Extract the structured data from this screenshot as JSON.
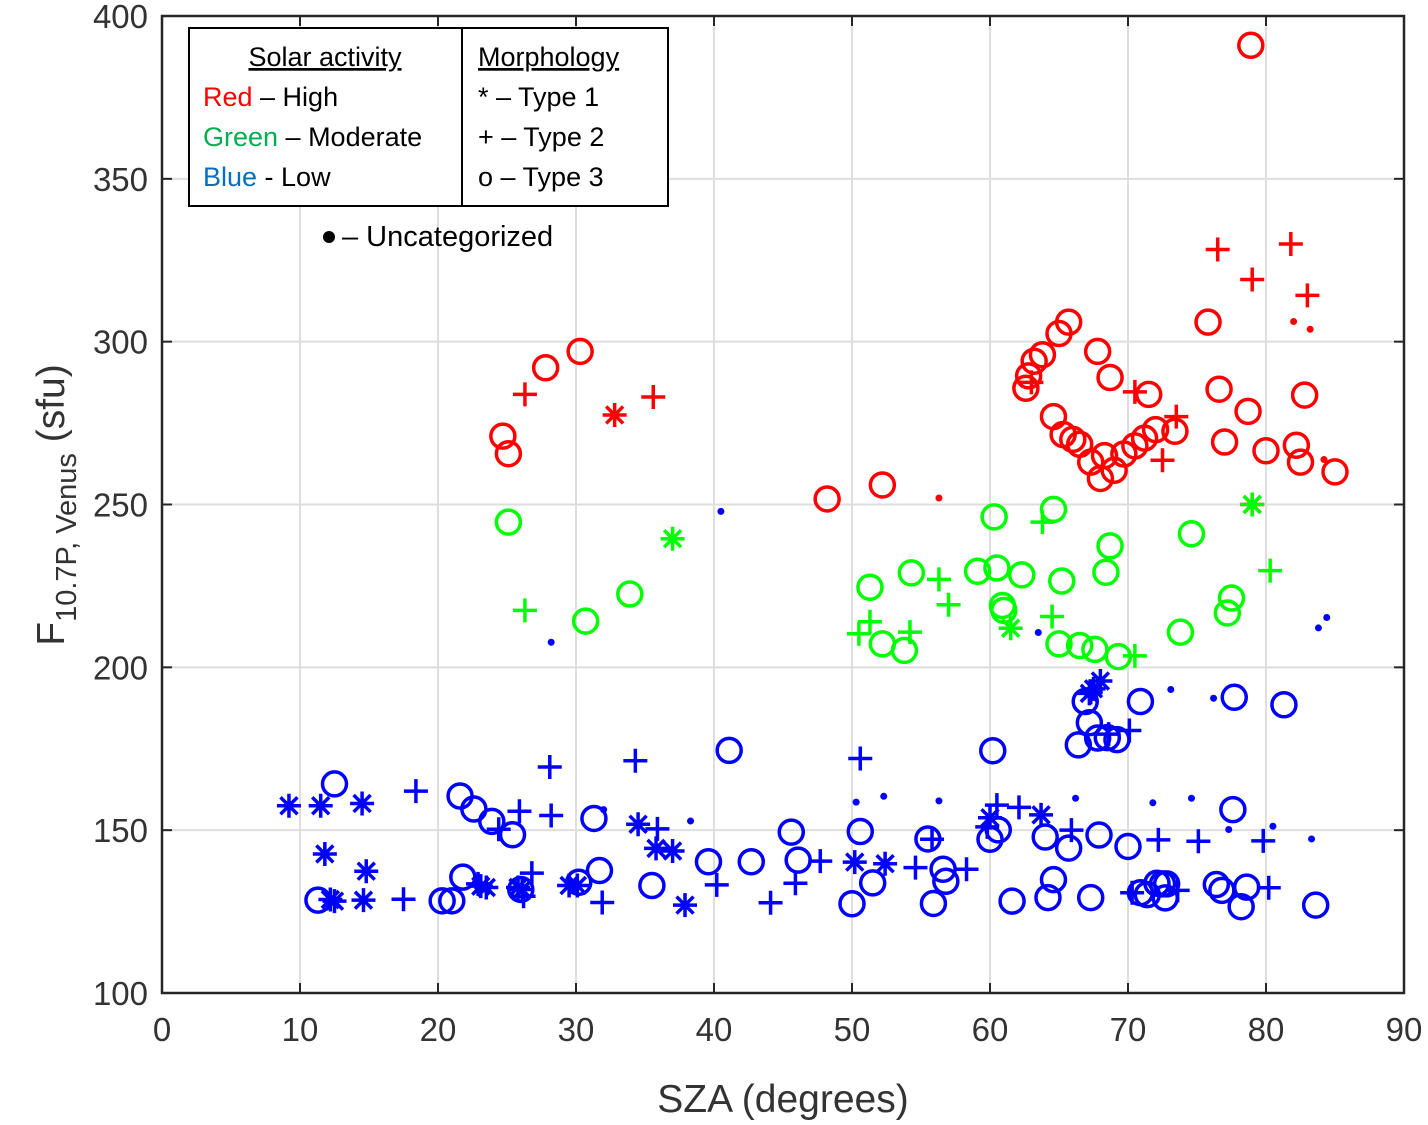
{
  "chart_data": {
    "type": "scatter",
    "x_label": "SZA (degrees)",
    "y_label": {
      "main": "F",
      "sub": "10.7P, Venus",
      "unit": "(sfu)"
    },
    "xlim": [
      0,
      90
    ],
    "ylim": [
      100,
      400
    ],
    "x_ticks": [
      0,
      10,
      20,
      30,
      40,
      50,
      60,
      70,
      80,
      90
    ],
    "y_ticks": [
      100,
      150,
      200,
      250,
      300,
      350,
      400
    ],
    "grid": true,
    "legend": {
      "position": "top-left",
      "col1_title": "Solar activity",
      "col1_rows": [
        {
          "color_word": "Red",
          "suffix": " – High",
          "color": "#ff0000"
        },
        {
          "color_word": "Green",
          "suffix": " – Moderate",
          "color": "#00b050"
        },
        {
          "color_word": "Blue",
          "suffix": " - Low",
          "color": "#0070c0"
        }
      ],
      "col2_title": "Morphology",
      "col2_rows": [
        "* – Type 1",
        "+ – Type 2",
        "o – Type 3"
      ],
      "uncategorized": "– Uncategorized"
    },
    "colors": {
      "High": "#ff0000",
      "Moderate": "#00ff00",
      "Low": "#0000ff"
    },
    "series": [
      {
        "name": "High",
        "color": "#ff0000",
        "type1": [
          [
            32.8,
            277.5
          ],
          [
            79,
            250
          ]
        ],
        "type2": [
          [
            26.3,
            283.8
          ],
          [
            35.6,
            283
          ],
          [
            63,
            287.5
          ],
          [
            70.5,
            284.6
          ],
          [
            72.5,
            263.6
          ],
          [
            73.5,
            277
          ],
          [
            76.5,
            328.3
          ],
          [
            79,
            319.1
          ],
          [
            81.8,
            330
          ],
          [
            83,
            314.2
          ]
        ],
        "type3": [
          [
            24.7,
            271
          ],
          [
            25.1,
            265.6
          ],
          [
            27.8,
            292
          ],
          [
            30.3,
            297
          ],
          [
            48.2,
            251.7
          ],
          [
            52.2,
            256
          ],
          [
            62.6,
            285.7
          ],
          [
            62.8,
            289.5
          ],
          [
            63.2,
            294
          ],
          [
            63.8,
            296
          ],
          [
            64.6,
            277
          ],
          [
            65.0,
            302.5
          ],
          [
            65.7,
            306
          ],
          [
            65.3,
            271.5
          ],
          [
            66,
            270
          ],
          [
            66.5,
            268.5
          ],
          [
            67.3,
            263
          ],
          [
            67.8,
            297
          ],
          [
            68,
            258
          ],
          [
            68.3,
            265
          ],
          [
            68.7,
            289
          ],
          [
            69,
            260.5
          ],
          [
            69.7,
            265.5
          ],
          [
            70.5,
            268
          ],
          [
            71.5,
            283.8
          ],
          [
            71.2,
            270.4
          ],
          [
            72,
            273
          ],
          [
            73.4,
            272.5
          ],
          [
            75.8,
            306
          ],
          [
            76.6,
            285.4
          ],
          [
            77,
            269.2
          ],
          [
            78.7,
            278.6
          ],
          [
            78.9,
            391
          ],
          [
            80,
            266.5
          ],
          [
            82.2,
            268.2
          ],
          [
            82.5,
            263
          ],
          [
            82.8,
            283.6
          ],
          [
            85,
            260
          ]
        ],
        "uncat": [
          [
            56.3,
            252
          ],
          [
            82.0,
            306.2
          ],
          [
            83.2,
            303.8
          ],
          [
            84.2,
            263.8
          ]
        ]
      },
      {
        "name": "Moderate",
        "color": "#00ff00",
        "type1": [
          [
            37,
            239.5
          ],
          [
            61.5,
            212
          ],
          [
            79,
            250
          ]
        ],
        "type2": [
          [
            26.3,
            217.5
          ],
          [
            50.5,
            210.3
          ],
          [
            51.3,
            214
          ],
          [
            54.2,
            210.8
          ],
          [
            56.3,
            227
          ],
          [
            57,
            219.2
          ],
          [
            63.8,
            244.6
          ],
          [
            64.5,
            215.6
          ],
          [
            70.5,
            203.5
          ],
          [
            80.3,
            229.7
          ]
        ],
        "type3": [
          [
            25.1,
            244.6
          ],
          [
            30.7,
            214.2
          ],
          [
            33.9,
            222.5
          ],
          [
            51.3,
            224.6
          ],
          [
            52.2,
            207.2
          ],
          [
            53.8,
            205.2
          ],
          [
            54.3,
            229
          ],
          [
            59.1,
            229.5
          ],
          [
            60.3,
            246.2
          ],
          [
            60.5,
            230.5
          ],
          [
            60.9,
            219
          ],
          [
            61.0,
            217.5
          ],
          [
            62.3,
            228.4
          ],
          [
            64.6,
            248.5
          ],
          [
            65,
            207.2
          ],
          [
            65.2,
            226.5
          ],
          [
            66.5,
            206.7
          ],
          [
            67.6,
            205.5
          ],
          [
            68.4,
            229.2
          ],
          [
            68.7,
            237.3
          ],
          [
            69.3,
            203.3
          ],
          [
            73.8,
            210.8
          ],
          [
            74.6,
            241
          ],
          [
            77.5,
            221.3
          ],
          [
            77.2,
            216.7
          ]
        ],
        "uncat": []
      },
      {
        "name": "Low",
        "color": "#0000ff",
        "type1": [
          [
            9.2,
            157.5
          ],
          [
            11.5,
            157.5
          ],
          [
            11.8,
            142.7
          ],
          [
            12.2,
            128.7
          ],
          [
            12.5,
            128.2
          ],
          [
            14.5,
            158.2
          ],
          [
            14.8,
            137.4
          ],
          [
            14.6,
            128.5
          ],
          [
            23.1,
            132.8
          ],
          [
            23.5,
            132.4
          ],
          [
            25.8,
            132.4
          ],
          [
            26.1,
            131.8
          ],
          [
            29.5,
            133
          ],
          [
            30.1,
            133
          ],
          [
            34.5,
            151.8
          ],
          [
            35.8,
            144.4
          ],
          [
            37,
            143.6
          ],
          [
            37.9,
            127
          ],
          [
            50.2,
            140.2
          ],
          [
            52.4,
            139.7
          ],
          [
            60,
            153.8
          ],
          [
            63.7,
            154.7
          ],
          [
            67.2,
            192
          ],
          [
            67.5,
            193.4
          ],
          [
            68,
            195.8
          ]
        ],
        "type2": [
          [
            17.5,
            128.8
          ],
          [
            18.4,
            162
          ],
          [
            22.9,
            133.5
          ],
          [
            24.4,
            150.3
          ],
          [
            25.9,
            155.8
          ],
          [
            26.2,
            129.7
          ],
          [
            26.8,
            136.8
          ],
          [
            28.1,
            169.4
          ],
          [
            28.2,
            154.5
          ],
          [
            31.9,
            127.8
          ],
          [
            34.3,
            171.3
          ],
          [
            35.9,
            150.4
          ],
          [
            40.2,
            133.2
          ],
          [
            44.1,
            127.7
          ],
          [
            45.9,
            133.7
          ],
          [
            47.7,
            140.5
          ],
          [
            50.6,
            172
          ],
          [
            54.6,
            138.5
          ],
          [
            55.8,
            147.2
          ],
          [
            58.3,
            138
          ],
          [
            59.8,
            151
          ],
          [
            60.5,
            157.7
          ],
          [
            62.1,
            157
          ],
          [
            65.9,
            150
          ],
          [
            67.3,
            192.3
          ],
          [
            68.6,
            179.5
          ],
          [
            70.1,
            180.6
          ],
          [
            70.3,
            130.8
          ],
          [
            72.2,
            147
          ],
          [
            73.6,
            131.5
          ],
          [
            75.1,
            146.6
          ],
          [
            79.8,
            146.7
          ],
          [
            80.2,
            132.3
          ]
        ],
        "type3": [
          [
            11.3,
            128.5
          ],
          [
            12.5,
            164.2
          ],
          [
            20.3,
            128.3
          ],
          [
            21.0,
            128.3
          ],
          [
            21.6,
            160.5
          ],
          [
            21.8,
            135.6
          ],
          [
            22.6,
            156.5
          ],
          [
            23.9,
            152.7
          ],
          [
            25.4,
            148.6
          ],
          [
            26.0,
            131.8
          ],
          [
            30.2,
            134
          ],
          [
            31.3,
            153.6
          ],
          [
            31.7,
            137.6
          ],
          [
            35.5,
            133
          ],
          [
            39.6,
            140.3
          ],
          [
            41.1,
            174.5
          ],
          [
            42.7,
            140.3
          ],
          [
            45.6,
            149.4
          ],
          [
            46.1,
            140.8
          ],
          [
            50.0,
            127.4
          ],
          [
            50.6,
            149.6
          ],
          [
            51.5,
            133.8
          ],
          [
            55.5,
            147.3
          ],
          [
            55.9,
            127.5
          ],
          [
            56.6,
            138
          ],
          [
            56.8,
            134.3
          ],
          [
            60.2,
            174.4
          ],
          [
            60.0,
            147.2
          ],
          [
            60.6,
            150.1
          ],
          [
            61.6,
            128.2
          ],
          [
            64.0,
            147.9
          ],
          [
            64.2,
            129.3
          ],
          [
            64.6,
            134.8
          ],
          [
            65.7,
            144.5
          ],
          [
            66.4,
            176.2
          ],
          [
            66.9,
            189.5
          ],
          [
            67.2,
            183
          ],
          [
            67.8,
            178.3
          ],
          [
            67.9,
            148.5
          ],
          [
            67.3,
            129.3
          ],
          [
            68.5,
            178.4
          ],
          [
            69.2,
            177.8
          ],
          [
            70,
            145
          ],
          [
            70.9,
            189.5
          ],
          [
            70.9,
            130.8
          ],
          [
            71.4,
            130.2
          ],
          [
            72.1,
            133.7
          ],
          [
            72.5,
            133.5
          ],
          [
            72.7,
            129.2
          ],
          [
            72.8,
            133.5
          ],
          [
            76.4,
            133.3
          ],
          [
            76.8,
            131.5
          ],
          [
            77.6,
            156.3
          ],
          [
            77.7,
            190.8
          ],
          [
            78.2,
            126.5
          ],
          [
            78.6,
            132.5
          ],
          [
            81.3,
            188.5
          ],
          [
            83.6,
            127
          ]
        ],
        "uncat": [
          [
            40.5,
            247.9
          ],
          [
            28.2,
            207.7
          ],
          [
            32.0,
            156.3
          ],
          [
            38.3,
            152.8
          ],
          [
            50.3,
            158.6
          ],
          [
            52.3,
            160.4
          ],
          [
            56.3,
            159
          ],
          [
            63.5,
            210.7
          ],
          [
            66.2,
            159.8
          ],
          [
            71.8,
            158.4
          ],
          [
            73.1,
            193.2
          ],
          [
            74.6,
            159.8
          ],
          [
            76.2,
            190.5
          ],
          [
            77.3,
            150.2
          ],
          [
            80.5,
            151.2
          ],
          [
            83.3,
            147.3
          ],
          [
            83.8,
            212.1
          ],
          [
            84.4,
            215.3
          ]
        ]
      }
    ]
  }
}
